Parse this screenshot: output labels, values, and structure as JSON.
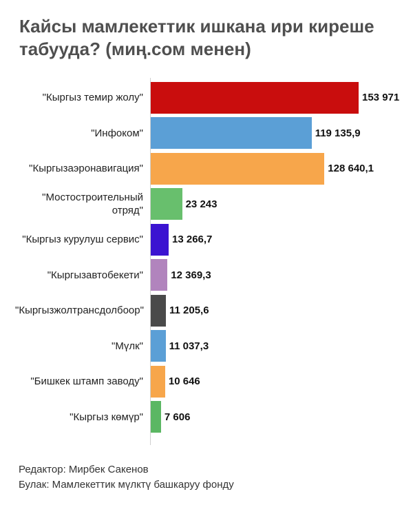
{
  "title": "Кайсы мамлекеттик ишкана ири киреше табууда? (миң.сом менен)",
  "chart_data": {
    "type": "bar",
    "orientation": "horizontal",
    "title": "Кайсы мамлекеттик ишкана ири киреше табууда? (миң.сом менен)",
    "unit": "миң сом",
    "categories": [
      "\"Кыргыз темир жолу\"",
      "\"Инфоком\"",
      "\"Кыргызаэронавигация\"",
      "\"Мостостроительный отряд\"",
      "\"Кыргыз курулуш сервис\"",
      "\"Кыргызавтобекети\"",
      "\"Кыргызжолтрансдолбоор\"",
      "\"Мүлк\"",
      "\"Бишкек штамп заводу\"",
      "\"Кыргыз көмүр\""
    ],
    "values": [
      153971,
      119135.9,
      128640.1,
      23243,
      13266.7,
      12369.3,
      11205.6,
      11037.3,
      10646,
      7606
    ],
    "value_labels": [
      "153 971",
      "119 135,9",
      "128 640,1",
      "23 243",
      "13 266,7",
      "12 369,3",
      "11 205,6",
      "11 037,3",
      "10 646",
      "7 606"
    ],
    "colors": [
      "#c90d0d",
      "#5b9fd6",
      "#f7a64b",
      "#68bf6d",
      "#3b13d1",
      "#b184bd",
      "#4a4a4a",
      "#5b9fd6",
      "#f7a64b",
      "#5bb763"
    ],
    "xlim": [
      0,
      153971
    ],
    "legend": "none",
    "grid": false
  },
  "footer": {
    "editor": "Редактор: Мирбек Сакенов",
    "source": "Булак: Мамлекеттик мүлктү башкаруу фонду"
  },
  "styles": {
    "title_color": "#4f4f4f",
    "label_color": "#222222",
    "value_color": "#111111",
    "axis_color": "#cfcfcf",
    "background": "#ffffff"
  }
}
